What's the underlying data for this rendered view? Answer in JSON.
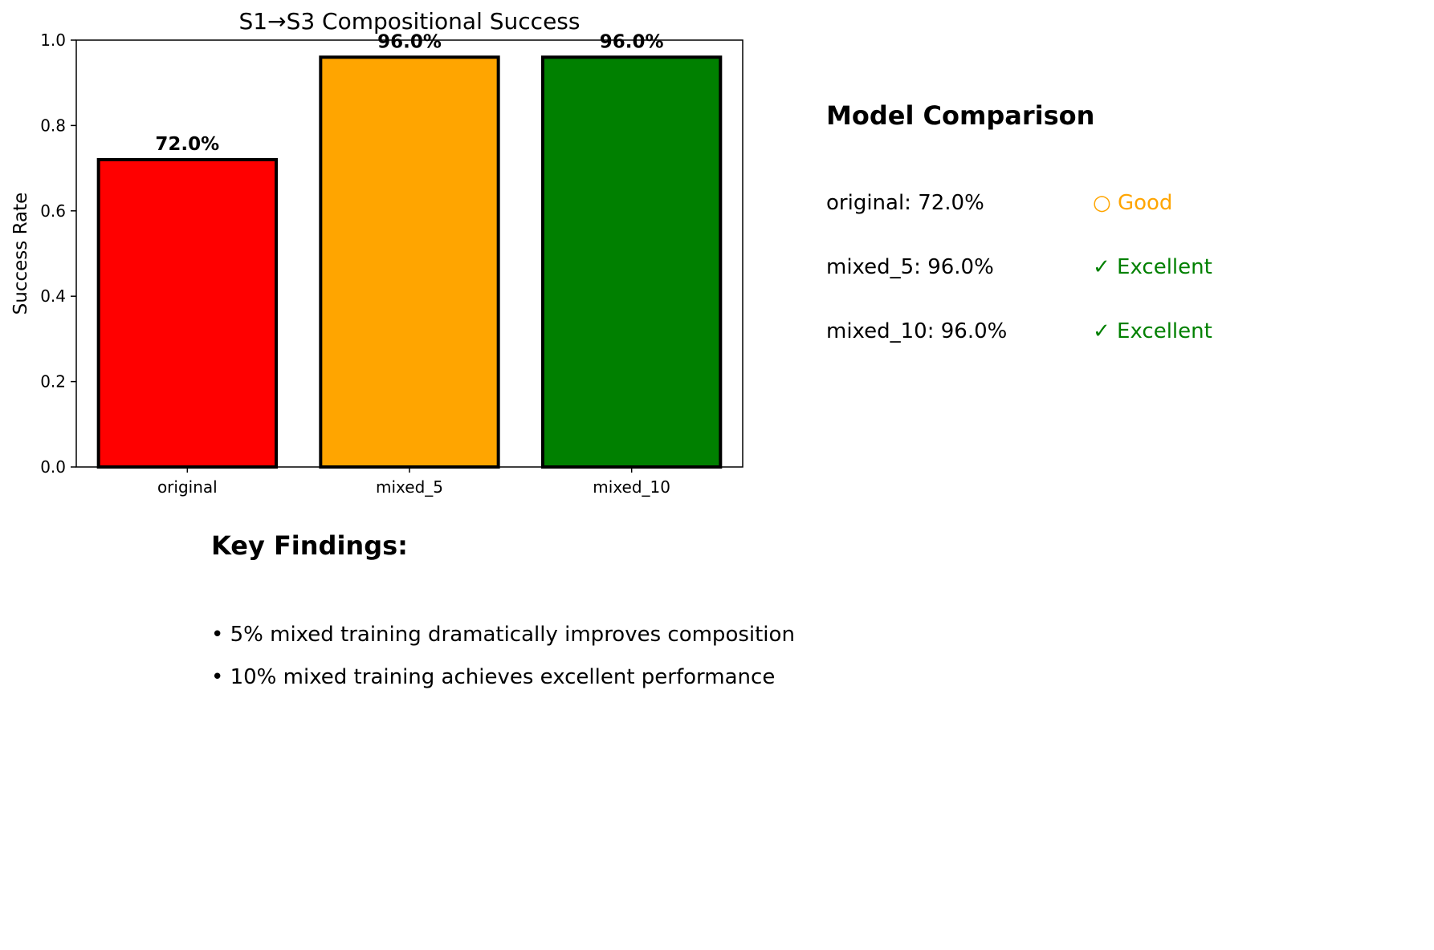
{
  "chart_data": {
    "type": "bar",
    "title": "S1→S3 Compositional Success",
    "xlabel": "",
    "ylabel": "Success Rate",
    "categories": [
      "original",
      "mixed_5",
      "mixed_10"
    ],
    "values": [
      0.72,
      0.96,
      0.96
    ],
    "data_labels": [
      "72.0%",
      "96.0%",
      "96.0%"
    ],
    "bar_colors": [
      "#ff0000",
      "#ffa500",
      "#008000"
    ],
    "bar_edge_color": "#000000",
    "ylim": [
      0,
      1
    ],
    "yticks": [
      0.0,
      0.2,
      0.4,
      0.6,
      0.8,
      1.0
    ],
    "ytick_labels": [
      "0.0",
      "0.2",
      "0.4",
      "0.6",
      "0.8",
      "1.0"
    ],
    "grid": false,
    "legend": "none"
  },
  "comparison": {
    "title": "Model Comparison",
    "rows": [
      {
        "model": "original: 72.0%",
        "rating": "○ Good",
        "rating_color": "#ffa500",
        "rating_icon": "circle-icon"
      },
      {
        "model": "mixed_5: 96.0%",
        "rating": "✓ Excellent",
        "rating_color": "#008000",
        "rating_icon": "check-icon"
      },
      {
        "model": "mixed_10: 96.0%",
        "rating": "✓ Excellent",
        "rating_color": "#008000",
        "rating_icon": "check-icon"
      }
    ]
  },
  "findings": {
    "title": "Key Findings:",
    "items": [
      "• 5% mixed training dramatically improves composition",
      "• 10% mixed training achieves excellent performance"
    ]
  }
}
